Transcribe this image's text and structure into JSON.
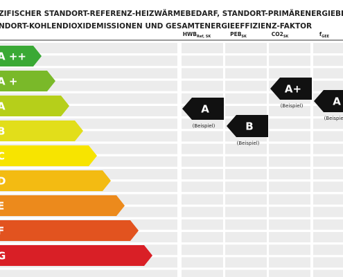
{
  "header": {
    "title": [
      "ZIFISCHER STANDORT-REFERENZ-HEIZWÄRMEBEDARF, STANDORT-PRIMÄRENERGIEBEDARF,",
      "NDORT-KOHLENDIOXIDEMISSIONEN UND GESAMTENERGIEEFFIZIENZ-FAKTOR"
    ]
  },
  "columns": [
    {
      "label": "HWB",
      "sub": "Ref, SK"
    },
    {
      "label": "PEB",
      "sub": "SK"
    },
    {
      "label": "CO2",
      "sub": "SK"
    },
    {
      "label": "f",
      "sub": "GEE"
    }
  ],
  "classes": [
    "A ++",
    "A +",
    "A",
    "B",
    "C",
    "D",
    "E",
    "F",
    "G"
  ],
  "markers": [
    {
      "grade": "A",
      "note": "(Beispiel)"
    },
    {
      "grade": "B",
      "note": "(Beispiel)"
    },
    {
      "grade": "A+",
      "note": "(Beispiel)"
    },
    {
      "grade": "A",
      "note": "(Beispiel)"
    }
  ]
}
